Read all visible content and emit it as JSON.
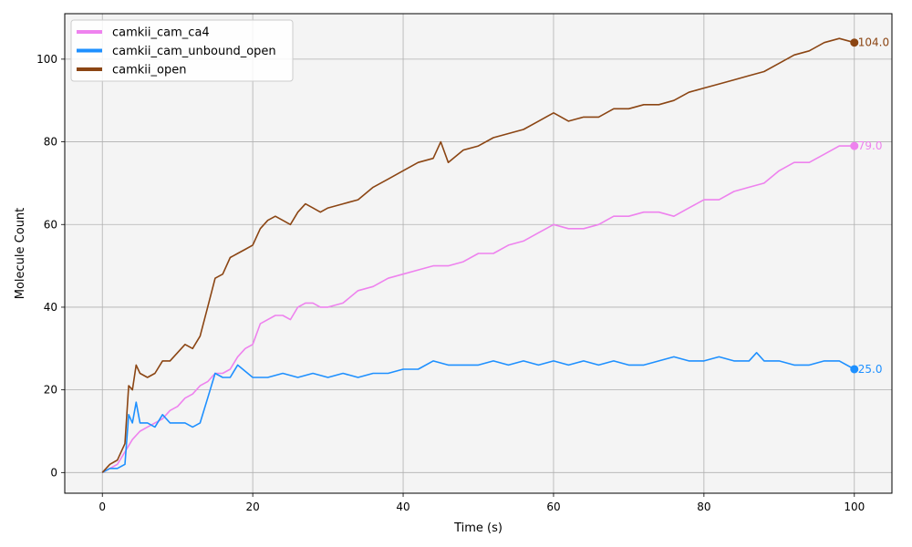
{
  "chart_data": {
    "type": "line",
    "title": "",
    "xlabel": "Time (s)",
    "ylabel": "Molecule Count",
    "xlim": [
      -5,
      105
    ],
    "ylim": [
      -5,
      111
    ],
    "xticks": [
      0,
      20,
      40,
      60,
      80,
      100
    ],
    "yticks": [
      0,
      20,
      40,
      60,
      80,
      100
    ],
    "xtick_labels": [
      "0",
      "20",
      "40",
      "60",
      "80",
      "100"
    ],
    "ytick_labels": [
      "0",
      "20",
      "40",
      "60",
      "80",
      "100"
    ],
    "grid": true,
    "legend_position": "top-left",
    "background": "#f4f4f4",
    "series": [
      {
        "name": "camkii_cam_ca4",
        "color": "#ee82ee",
        "end_label": "79.0",
        "x": [
          0,
          1,
          2,
          3,
          4,
          5,
          6,
          7,
          8,
          9,
          10,
          11,
          12,
          13,
          14,
          15,
          16,
          17,
          18,
          19,
          20,
          21,
          22,
          23,
          24,
          25,
          26,
          27,
          28,
          29,
          30,
          32,
          34,
          36,
          38,
          40,
          42,
          44,
          46,
          48,
          50,
          52,
          54,
          56,
          58,
          60,
          62,
          64,
          66,
          68,
          70,
          72,
          74,
          76,
          78,
          80,
          82,
          84,
          86,
          88,
          90,
          92,
          94,
          96,
          98,
          100
        ],
        "values": [
          0,
          1,
          2,
          5,
          8,
          10,
          11,
          12,
          13,
          15,
          16,
          18,
          19,
          21,
          22,
          24,
          24,
          25,
          28,
          30,
          31,
          36,
          37,
          38,
          38,
          37,
          40,
          41,
          41,
          40,
          40,
          41,
          44,
          45,
          47,
          48,
          49,
          50,
          50,
          51,
          53,
          53,
          55,
          56,
          58,
          60,
          59,
          59,
          60,
          62,
          62,
          63,
          63,
          62,
          64,
          66,
          66,
          68,
          69,
          70,
          73,
          75,
          75,
          77,
          79,
          79
        ]
      },
      {
        "name": "camkii_cam_unbound_open",
        "color": "#1e90ff",
        "end_label": "25.0",
        "x": [
          0,
          1,
          2,
          3,
          3.5,
          4,
          4.5,
          5,
          6,
          7,
          8,
          9,
          10,
          11,
          12,
          13,
          14,
          15,
          16,
          17,
          18,
          20,
          22,
          24,
          26,
          28,
          30,
          32,
          34,
          36,
          38,
          40,
          42,
          44,
          46,
          48,
          50,
          52,
          54,
          56,
          58,
          60,
          62,
          64,
          66,
          68,
          70,
          72,
          74,
          76,
          78,
          80,
          82,
          84,
          86,
          87,
          88,
          90,
          92,
          94,
          96,
          98,
          100
        ],
        "values": [
          0,
          1,
          1,
          2,
          14,
          12,
          17,
          12,
          12,
          11,
          14,
          12,
          12,
          12,
          11,
          12,
          18,
          24,
          23,
          23,
          26,
          23,
          23,
          24,
          23,
          24,
          23,
          24,
          23,
          24,
          24,
          25,
          25,
          27,
          26,
          26,
          26,
          27,
          26,
          27,
          26,
          27,
          26,
          27,
          26,
          27,
          26,
          26,
          27,
          28,
          27,
          27,
          28,
          27,
          27,
          29,
          27,
          27,
          26,
          26,
          27,
          27,
          25
        ]
      },
      {
        "name": "camkii_open",
        "color": "#8b4513",
        "end_label": "104.0",
        "x": [
          0,
          1,
          2,
          3,
          3.5,
          4,
          4.5,
          5,
          6,
          7,
          8,
          9,
          10,
          11,
          12,
          13,
          14,
          15,
          16,
          17,
          18,
          19,
          20,
          21,
          22,
          23,
          24,
          25,
          26,
          27,
          28,
          29,
          30,
          32,
          34,
          36,
          38,
          40,
          42,
          44,
          45,
          46,
          48,
          50,
          52,
          54,
          56,
          58,
          60,
          62,
          64,
          66,
          68,
          70,
          72,
          74,
          76,
          78,
          80,
          82,
          84,
          86,
          88,
          90,
          92,
          94,
          96,
          98,
          100
        ],
        "values": [
          0,
          2,
          3,
          7,
          21,
          20,
          26,
          24,
          23,
          24,
          27,
          27,
          29,
          31,
          30,
          33,
          40,
          47,
          48,
          52,
          53,
          54,
          55,
          59,
          61,
          62,
          61,
          60,
          63,
          65,
          64,
          63,
          64,
          65,
          66,
          69,
          71,
          73,
          75,
          76,
          80,
          75,
          78,
          79,
          81,
          82,
          83,
          85,
          87,
          85,
          86,
          86,
          88,
          88,
          89,
          89,
          90,
          92,
          93,
          94,
          95,
          96,
          97,
          99,
          101,
          102,
          104,
          105,
          104
        ]
      }
    ]
  }
}
